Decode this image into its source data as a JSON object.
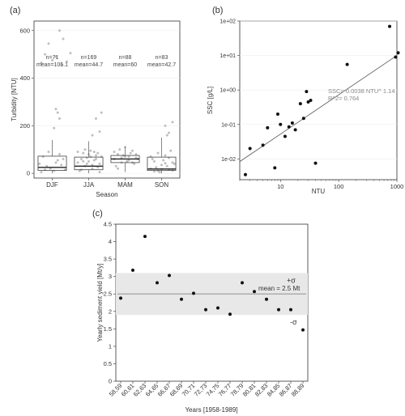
{
  "chart_data": [
    {
      "panel_label": "(a)",
      "type": "box",
      "xlabel": "Season",
      "ylabel": "Turbidity [NTU]",
      "ylim": [
        -20,
        640
      ],
      "yticks": [
        0,
        200,
        400,
        600
      ],
      "categories": [
        "DJF",
        "JJA",
        "MAM",
        "SON"
      ],
      "annotations": [
        {
          "n": "n=71",
          "mean": "mean=105.1"
        },
        {
          "n": "n=169",
          "mean": "mean=44.7"
        },
        {
          "n": "n=88",
          "mean": "mean=60"
        },
        {
          "n": "n=83",
          "mean": "mean=42.7"
        }
      ],
      "boxes": [
        {
          "q1": 12,
          "median": 25,
          "q3": 72,
          "whisker_low": 0,
          "whisker_high": 140
        },
        {
          "q1": 15,
          "median": 30,
          "q3": 68,
          "whisker_low": 0,
          "whisker_high": 135
        },
        {
          "q1": 45,
          "median": 60,
          "q3": 75,
          "whisker_low": 5,
          "whisker_high": 110
        },
        {
          "q1": 12,
          "median": 18,
          "q3": 68,
          "whisker_low": 0,
          "whisker_high": 150
        }
      ],
      "points": [
        [
          0.2,
          600
        ],
        [
          0.3,
          565
        ],
        [
          -0.1,
          545
        ],
        [
          0.5,
          505
        ],
        [
          -0.2,
          500
        ],
        [
          0.1,
          490
        ],
        [
          0.4,
          470
        ],
        [
          0.0,
          475
        ],
        [
          -0.3,
          465
        ],
        [
          0.25,
          455
        ],
        [
          0.1,
          270
        ],
        [
          0.15,
          255
        ],
        [
          0.2,
          230
        ],
        [
          0.05,
          190
        ],
        [
          -0.35,
          40
        ],
        [
          -0.25,
          70
        ],
        [
          -0.15,
          30
        ],
        [
          -0.05,
          20
        ],
        [
          0.05,
          10
        ],
        [
          0.15,
          55
        ],
        [
          0.25,
          35
        ],
        [
          0.35,
          15
        ],
        [
          -0.3,
          5
        ],
        [
          0.3,
          60
        ],
        [
          -0.1,
          90
        ],
        [
          0.2,
          80
        ],
        [
          0.1,
          45
        ],
        [
          -0.2,
          15
        ],
        [
          1.2,
          230
        ],
        [
          1.35,
          255
        ],
        [
          1.1,
          160
        ],
        [
          1.3,
          175
        ],
        [
          0.7,
          90
        ],
        [
          0.8,
          60
        ],
        [
          0.9,
          30
        ],
        [
          1.0,
          50
        ],
        [
          1.1,
          20
        ],
        [
          1.2,
          75
        ],
        [
          1.3,
          40
        ],
        [
          0.75,
          10
        ],
        [
          0.85,
          85
        ],
        [
          0.95,
          65
        ],
        [
          1.05,
          95
        ],
        [
          1.15,
          55
        ],
        [
          1.25,
          25
        ],
        [
          1.35,
          70
        ],
        [
          0.7,
          45
        ],
        [
          0.8,
          15
        ],
        [
          0.9,
          100
        ],
        [
          1.0,
          80
        ],
        [
          1.1,
          35
        ],
        [
          1.2,
          60
        ],
        [
          1.3,
          5
        ],
        [
          0.95,
          40
        ],
        [
          1.05,
          70
        ],
        [
          1.15,
          90
        ],
        [
          0.85,
          50
        ],
        [
          1.25,
          85
        ],
        [
          1.7,
          60
        ],
        [
          1.8,
          80
        ],
        [
          1.9,
          45
        ],
        [
          2.0,
          70
        ],
        [
          2.1,
          55
        ],
        [
          2.2,
          95
        ],
        [
          2.3,
          65
        ],
        [
          1.75,
          30
        ],
        [
          1.85,
          100
        ],
        [
          1.95,
          75
        ],
        [
          2.05,
          50
        ],
        [
          2.15,
          85
        ],
        [
          2.25,
          40
        ],
        [
          2.35,
          60
        ],
        [
          1.7,
          90
        ],
        [
          1.8,
          20
        ],
        [
          1.9,
          65
        ],
        [
          2.0,
          110
        ],
        [
          2.1,
          70
        ],
        [
          2.2,
          45
        ],
        [
          2.3,
          80
        ],
        [
          3.1,
          200
        ],
        [
          3.3,
          215
        ],
        [
          3.2,
          170
        ],
        [
          3.15,
          160
        ],
        [
          2.7,
          20
        ],
        [
          2.8,
          50
        ],
        [
          2.9,
          10
        ],
        [
          3.0,
          35
        ],
        [
          3.1,
          75
        ],
        [
          3.2,
          15
        ],
        [
          3.3,
          45
        ],
        [
          2.75,
          60
        ],
        [
          2.85,
          25
        ],
        [
          2.95,
          5
        ],
        [
          3.05,
          55
        ],
        [
          3.15,
          30
        ],
        [
          3.25,
          95
        ],
        [
          3.35,
          40
        ],
        [
          2.7,
          70
        ],
        [
          2.8,
          8
        ],
        [
          2.9,
          85
        ],
        [
          3.0,
          18
        ],
        [
          3.1,
          42
        ],
        [
          3.2,
          65
        ],
        [
          3.3,
          12
        ]
      ]
    },
    {
      "panel_label": "(b)",
      "type": "scatter",
      "xscale": "log",
      "yscale": "log",
      "xlabel": "NTU",
      "ylabel": "SSC [g/L]",
      "xlim": [
        2,
        1000
      ],
      "ylim": [
        0.0025,
        100
      ],
      "xtick_labels": [
        "10",
        "100",
        "1000"
      ],
      "ytick_labels": [
        "1e-02",
        "1e-01",
        "1e+00",
        "1e+01",
        "1e+02"
      ],
      "equation": "SSC= 0.0038 NTU^ 1.14",
      "r2": "R^2= 0.764",
      "fit": {
        "a": 0.0038,
        "b": 1.14
      },
      "points": [
        [
          2.5,
          0.0035
        ],
        [
          3,
          0.02
        ],
        [
          5,
          0.025
        ],
        [
          6,
          0.08
        ],
        [
          8,
          0.0055
        ],
        [
          9,
          0.2
        ],
        [
          10,
          0.1
        ],
        [
          12,
          0.045
        ],
        [
          14,
          0.085
        ],
        [
          16,
          0.11
        ],
        [
          18,
          0.07
        ],
        [
          22,
          0.4
        ],
        [
          25,
          0.15
        ],
        [
          28,
          0.9
        ],
        [
          30,
          0.45
        ],
        [
          33,
          0.5
        ],
        [
          40,
          0.0075
        ],
        [
          140,
          5.5
        ],
        [
          950,
          9
        ],
        [
          1050,
          12
        ],
        [
          750,
          70
        ]
      ]
    },
    {
      "panel_label": "(c)",
      "type": "scatter",
      "xlabel": "Years [1958-1989]",
      "ylabel": "Yearly sediment yield [Mt/y]",
      "ylim": [
        0,
        4.5
      ],
      "yticks": [
        0,
        0.5,
        1,
        1.5,
        2,
        2.5,
        3,
        3.5,
        4,
        4.5
      ],
      "categories": [
        "58,59",
        "60,61",
        "62,63",
        "64,65",
        "66,67",
        "68,69",
        "70,71",
        "72,73",
        "74,75",
        "76,77",
        "78,79",
        "80,81",
        "82,83",
        "84,85",
        "86,87",
        "88,89"
      ],
      "values": [
        2.38,
        3.18,
        4.15,
        2.82,
        3.03,
        2.35,
        2.52,
        2.05,
        2.1,
        1.92,
        2.82,
        2.57,
        2.35,
        2.05,
        2.05,
        1.47
      ],
      "mean_label": "mean = 2.5 Mt",
      "mean": 2.5,
      "sigma_band": [
        1.9,
        3.1
      ],
      "plus_sigma_label": "+σ",
      "minus_sigma_label": "-σ"
    }
  ]
}
